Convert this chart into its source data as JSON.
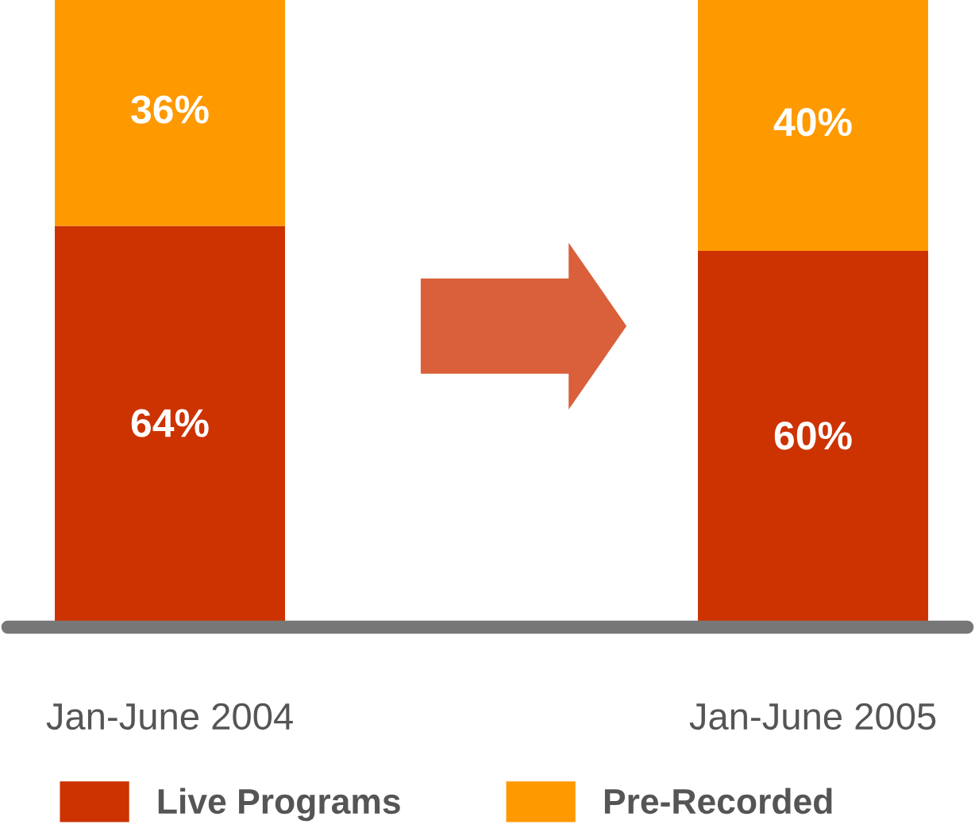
{
  "chart_data": {
    "type": "bar",
    "stacked": true,
    "categories": [
      "Jan-June 2004",
      "Jan-June 2005"
    ],
    "series": [
      {
        "name": "Live Programs",
        "color": "#cc3300",
        "values": [
          64,
          60
        ],
        "value_labels": [
          "64%",
          "60%"
        ]
      },
      {
        "name": "Pre-Recorded",
        "color": "#ff9900",
        "values": [
          36,
          40
        ],
        "value_labels": [
          "36%",
          "40%"
        ]
      }
    ],
    "legend": "bottom",
    "grid": false
  }
}
